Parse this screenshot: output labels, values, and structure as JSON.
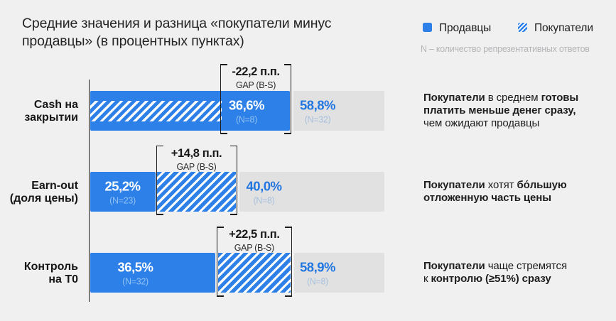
{
  "title": {
    "line1": "Средние значения и разница «покупатели минус",
    "line2": "продавцы» (в процентных пунктах)"
  },
  "legend": {
    "sellers_label": "Продавцы",
    "buyers_label": "Покупатели",
    "note": "N – количество репрезентативных ответов"
  },
  "colors": {
    "background": "#f0f0f1",
    "bar_blue": "#2c80e8",
    "bar_gray": "#e1e1e2",
    "accent_text_blue": "#2277e0",
    "axis_and_bracket": "#1c1c1c"
  },
  "chart_data": {
    "type": "bar",
    "orientation": "horizontal",
    "title": "Средние значения и разница «покупатели минус продавцы» (в процентных пунктах)",
    "legend": [
      "Продавцы",
      "Покупатели"
    ],
    "note": "N – количество репрезентативных ответов",
    "gap_label": "GAP (B-S)",
    "rows": [
      {
        "category_line1": "Cash на",
        "category_line2": "закрытии",
        "seller_value": 58.8,
        "seller_n": 32,
        "buyer_value": 36.6,
        "buyer_n": 8,
        "gap_pp": -22.2,
        "gap_text": "-22,2 п.п.",
        "gap_sub": "GAP (B-S)",
        "buyer_pct_label": "36,6%",
        "buyer_n_label": "(N=8)",
        "seller_pct_label": "58,8%",
        "seller_n_label": "(N=32)",
        "annotation": [
          {
            "t": "Покупатели",
            "b": 1
          },
          {
            "t": " в среднем ",
            "b": 0
          },
          {
            "t": "готовы",
            "b": 1
          },
          {
            "br": 1
          },
          {
            "t": "платить меньше денег сразу,",
            "b": 1
          },
          {
            "br": 1
          },
          {
            "t": "чем ожидают продавцы",
            "b": 0
          }
        ]
      },
      {
        "category_line1": "Earn-out",
        "category_line2": "(доля цены)",
        "seller_value": 25.2,
        "seller_n": 23,
        "buyer_value": 40.0,
        "buyer_n": 8,
        "gap_pp": 14.8,
        "gap_text": "+14,8 п.п.",
        "gap_sub": "GAP (B-S)",
        "seller_pct_label": "25,2%",
        "seller_n_label": "(N=23)",
        "buyer_pct_label": "40,0%",
        "buyer_n_label": "(N=8)",
        "annotation": [
          {
            "t": "Покупатели",
            "b": 1
          },
          {
            "t": " хотят ",
            "b": 0
          },
          {
            "t": "бо́льшую",
            "b": 1
          },
          {
            "br": 1
          },
          {
            "t": "отложенную часть цены",
            "b": 1
          }
        ]
      },
      {
        "category_line1": "Контроль",
        "category_line2": "на Т0",
        "seller_value": 36.5,
        "seller_n": 32,
        "buyer_value": 58.9,
        "buyer_n": 8,
        "gap_pp": 22.5,
        "gap_text": "+22,5 п.п.",
        "gap_sub": "GAP (B-S)",
        "seller_pct_label": "36,5%",
        "seller_n_label": "(N=32)",
        "buyer_pct_label": "58,9%",
        "buyer_n_label": "(N=8)",
        "annotation": [
          {
            "t": "Покупатели",
            "b": 1
          },
          {
            "t": " чаще стремятся",
            "b": 0
          },
          {
            "br": 1
          },
          {
            "t": "к ",
            "b": 0
          },
          {
            "t": "контролю (≥51%) сразу",
            "b": 1
          }
        ]
      }
    ]
  }
}
